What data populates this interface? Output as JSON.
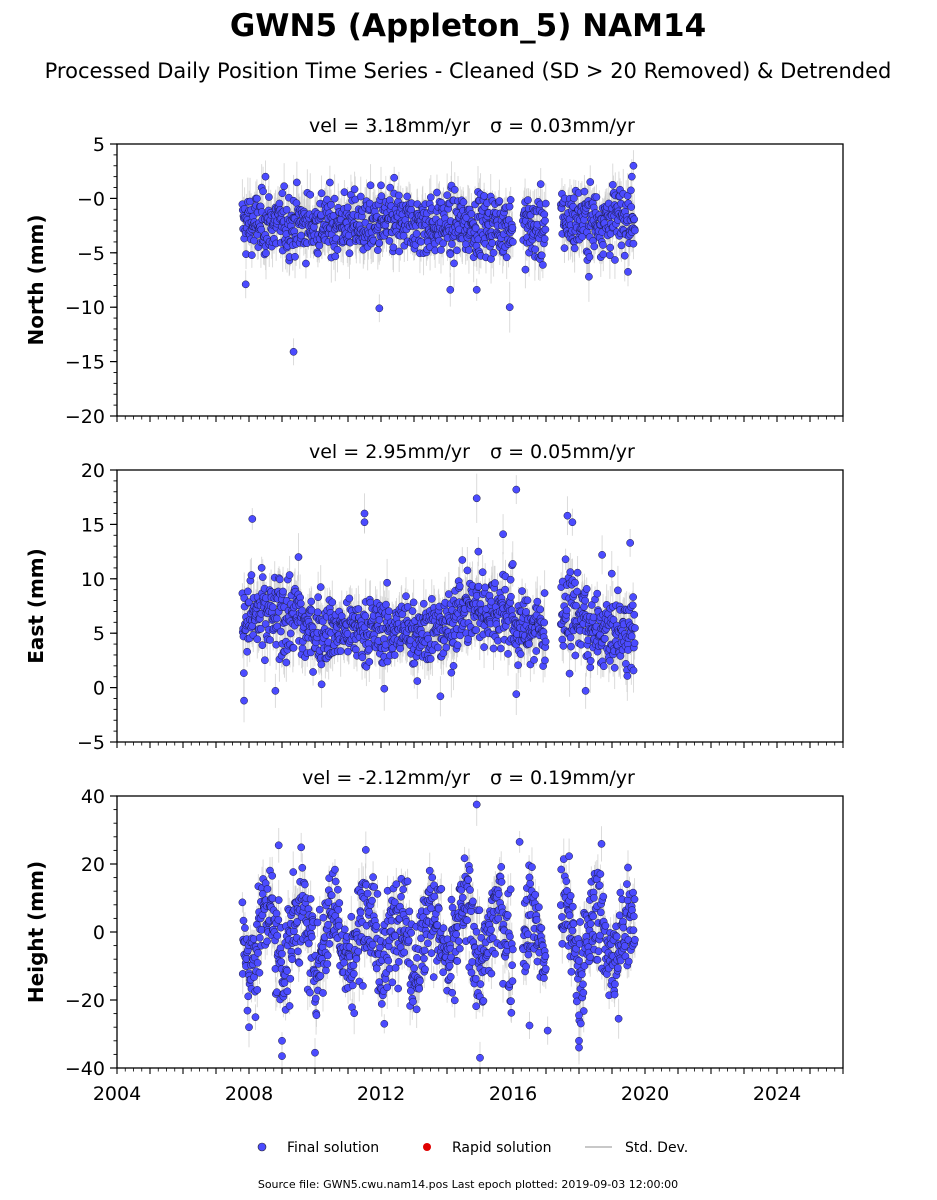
{
  "chart_data": {
    "type": "scatter",
    "title": "GWN5 (Appleton_5) NAM14",
    "subtitle": "Processed Daily Position Time Series - Cleaned (SD > 20 Removed) & Detrended",
    "source_note": "Source file: GWN5.cwu.nam14.pos  Last epoch plotted: 2019-09-03 12:00:00",
    "xlim": [
      2004,
      2026
    ],
    "x_ticks": [
      2004,
      2008,
      2012,
      2016,
      2020,
      2024
    ],
    "x_tick_labels": [
      "2004",
      "2008",
      "2012",
      "2016",
      "2020",
      "2024"
    ],
    "grid": false,
    "legend": {
      "placement": "bottom-center",
      "entries": [
        {
          "label": "Final solution",
          "color": "#4b4bff",
          "marker": "circle"
        },
        {
          "label": "Rapid solution",
          "color": "#e00000",
          "marker": "circle"
        },
        {
          "label": "Std. Dev.",
          "color": "#c8c8c8",
          "marker": "line"
        }
      ]
    },
    "panels": [
      {
        "component": "north",
        "ylabel": "North (mm)",
        "vel_text": "vel = 3.18mm/yr",
        "sigma_text": "σ = 0.03mm/yr",
        "ylim": [
          -20,
          5
        ],
        "y_ticks": [
          5,
          0,
          -5,
          -10,
          -15,
          -20
        ],
        "y_tick_labels": [
          "5",
          "−0",
          "−5",
          "−10",
          "−15",
          "−20"
        ],
        "segments": [
          [
            2007.8,
            2016.0,
            -2.4,
            1.4
          ],
          [
            2016.3,
            2017.0,
            -2.8,
            1.6
          ],
          [
            2017.45,
            2019.7,
            -2.0,
            1.5
          ]
        ],
        "outliers": [
          [
            2007.9,
            -7.9
          ],
          [
            2008.5,
            2.0
          ],
          [
            2009.35,
            -14.1
          ],
          [
            2011.95,
            -10.1
          ],
          [
            2012.0,
            1.2
          ],
          [
            2012.4,
            1.9
          ],
          [
            2014.1,
            -8.4
          ],
          [
            2014.9,
            -8.4
          ],
          [
            2015.9,
            -10.0
          ],
          [
            2018.3,
            -7.2
          ],
          [
            2019.65,
            3.0
          ],
          [
            2019.6,
            2.0
          ]
        ],
        "final_color": "#4b4bff",
        "stddev_color": "#c8c8c8"
      },
      {
        "component": "east",
        "ylabel": "East (mm)",
        "vel_text": "vel = 2.95mm/yr",
        "sigma_text": "σ = 0.05mm/yr",
        "ylim": [
          -5,
          20
        ],
        "y_ticks": [
          20,
          15,
          10,
          5,
          0,
          -5
        ],
        "y_tick_labels": [
          "20",
          "15",
          "10",
          "5",
          "0",
          "−5"
        ],
        "segments": [
          [
            2007.8,
            2009.6,
            6.5,
            1.9
          ],
          [
            2009.6,
            2014.2,
            5.3,
            1.5
          ],
          [
            2014.2,
            2016.0,
            7.2,
            1.8
          ],
          [
            2016.0,
            2017.0,
            5.5,
            1.6
          ],
          [
            2017.45,
            2018.2,
            6.8,
            1.9
          ],
          [
            2018.2,
            2019.7,
            5.0,
            1.6
          ]
        ],
        "outliers": [
          [
            2007.85,
            -1.2
          ],
          [
            2008.1,
            15.5
          ],
          [
            2008.8,
            -0.3
          ],
          [
            2009.5,
            12.0
          ],
          [
            2010.2,
            0.3
          ],
          [
            2011.5,
            16.0
          ],
          [
            2011.5,
            15.2
          ],
          [
            2012.1,
            -0.1
          ],
          [
            2013.1,
            0.6
          ],
          [
            2013.8,
            -0.8
          ],
          [
            2014.9,
            17.4
          ],
          [
            2014.95,
            12.5
          ],
          [
            2015.7,
            14.1
          ],
          [
            2016.1,
            18.2
          ],
          [
            2016.1,
            -0.6
          ],
          [
            2017.65,
            15.8
          ],
          [
            2017.8,
            15.2
          ],
          [
            2018.2,
            -0.3
          ],
          [
            2018.7,
            12.2
          ],
          [
            2019.55,
            13.3
          ]
        ],
        "final_color": "#4b4bff",
        "stddev_color": "#c8c8c8"
      },
      {
        "component": "height",
        "ylabel": "Height (mm)",
        "vel_text": "vel = -2.12mm/yr",
        "sigma_text": "σ = 0.19mm/yr",
        "ylim": [
          -40,
          40
        ],
        "y_ticks": [
          40,
          20,
          0,
          -20,
          -40
        ],
        "y_tick_labels": [
          "40",
          "20",
          "0",
          "−20",
          "−40"
        ],
        "segments": [
          [
            2007.8,
            2016.0,
            -1.0,
            7.5
          ],
          [
            2016.3,
            2017.0,
            -2.0,
            7.5
          ],
          [
            2017.45,
            2019.7,
            -1.5,
            7.5
          ]
        ],
        "outliers": [
          [
            2008.0,
            -28.0
          ],
          [
            2008.9,
            25.5
          ],
          [
            2009.0,
            -32.0
          ],
          [
            2009.0,
            -36.5
          ],
          [
            2010.0,
            -35.5
          ],
          [
            2012.1,
            -27.0
          ],
          [
            2014.9,
            37.5
          ],
          [
            2015.0,
            -37.0
          ],
          [
            2016.2,
            26.5
          ],
          [
            2016.5,
            -27.5
          ],
          [
            2017.05,
            -29.0
          ],
          [
            2017.7,
            22.3
          ],
          [
            2018.0,
            -32.0
          ],
          [
            2018.0,
            -34.0
          ],
          [
            2018.0,
            -24.5
          ],
          [
            2019.2,
            -25.5
          ]
        ],
        "final_color": "#4b4bff",
        "stddev_color": "#c8c8c8"
      }
    ]
  }
}
